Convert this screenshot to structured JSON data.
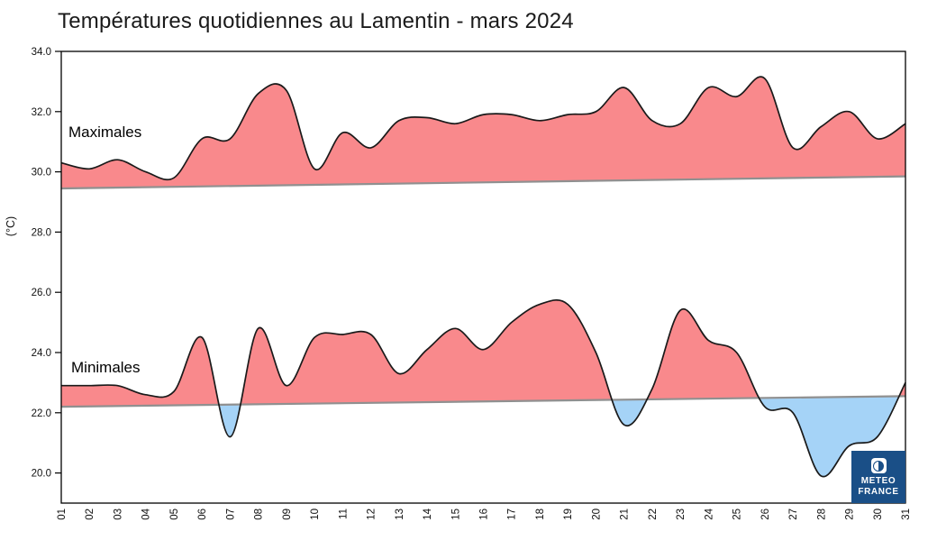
{
  "title": "Températures quotidiennes au Lamentin - mars 2024",
  "y_axis": {
    "unit_label": "(°C)",
    "tick_labels": [
      "20.0",
      "22.0",
      "24.0",
      "26.0",
      "28.0",
      "30.0",
      "32.0",
      "34.0"
    ]
  },
  "logo": {
    "line1": "METEO",
    "line2": "FRANCE"
  },
  "colors": {
    "above_normal_fill": "#F9898C",
    "below_normal_fill": "#A5D3F7",
    "curve_line": "#1a1a1a",
    "normal_line": "#909090",
    "axis": "#000000",
    "tick_text": "#111111",
    "logo_background": "#1A4F87",
    "logo_text": "#FFFFFF"
  },
  "chart_data": {
    "type": "area",
    "title": "Températures quotidiennes au Lamentin - mars 2024",
    "xlabel": "",
    "ylabel": "(°C)",
    "ylim": [
      19,
      34
    ],
    "yticks": [
      20,
      22,
      24,
      26,
      28,
      30,
      32,
      34
    ],
    "grid": false,
    "legend_position": "none",
    "fill_rule": "red where daily value is above the normal line, blue where below",
    "categories": [
      "01",
      "02",
      "03",
      "04",
      "05",
      "06",
      "07",
      "08",
      "09",
      "10",
      "11",
      "12",
      "13",
      "14",
      "15",
      "16",
      "17",
      "18",
      "19",
      "20",
      "21",
      "22",
      "23",
      "24",
      "25",
      "26",
      "27",
      "28",
      "29",
      "30",
      "31"
    ],
    "series": [
      {
        "name": "Maximales",
        "values": [
          30.3,
          30.1,
          30.4,
          30.0,
          29.8,
          31.1,
          31.1,
          32.6,
          32.7,
          30.1,
          31.3,
          30.8,
          31.7,
          31.8,
          31.6,
          31.9,
          31.9,
          31.7,
          31.9,
          32.0,
          32.8,
          31.7,
          31.6,
          32.8,
          32.5,
          33.1,
          30.8,
          31.5,
          32.0,
          31.1,
          31.6
        ],
        "normal_start": 29.45,
        "normal_end": 29.85
      },
      {
        "name": "Minimales",
        "values": [
          22.9,
          22.9,
          22.9,
          22.6,
          22.7,
          24.5,
          21.2,
          24.8,
          22.9,
          24.5,
          24.6,
          24.6,
          23.3,
          24.1,
          24.8,
          24.1,
          25.0,
          25.6,
          25.6,
          24.0,
          21.6,
          22.8,
          25.4,
          24.4,
          24.0,
          22.2,
          22.0,
          19.9,
          20.9,
          21.2,
          23.0
        ],
        "normal_start": 22.2,
        "normal_end": 22.55
      }
    ]
  }
}
